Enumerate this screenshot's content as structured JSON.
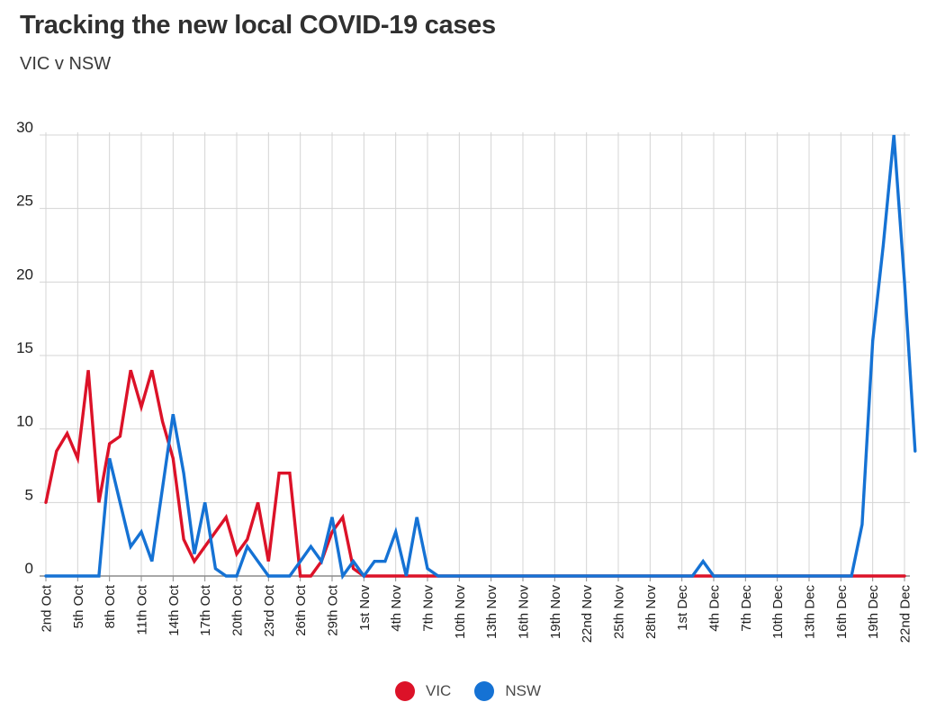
{
  "header": {
    "title": "Tracking the new local COVID-19 cases",
    "subtitle": "VIC v NSW"
  },
  "colors": {
    "vic": "#dc1228",
    "nsw": "#1572d4",
    "grid": "#d4d4d4",
    "axis": "#8c8c8c",
    "axis_label": "#1f1f1f",
    "title_text": "#303030",
    "legend_text": "#4a4a4a",
    "background": "#ffffff"
  },
  "legend": {
    "items": [
      {
        "label": "VIC",
        "color": "#dc1228"
      },
      {
        "label": "NSW",
        "color": "#1572d4"
      }
    ]
  },
  "chart_data": {
    "type": "line",
    "title": "Tracking the new local COVID-19 cases",
    "subtitle": "VIC v NSW",
    "x_frequency": "daily",
    "x_start": "2nd Oct",
    "x_end": "22nd Dec",
    "x_tick_every_days": 3,
    "x_tick_labels": [
      "2nd Oct",
      "5th Oct",
      "8th Oct",
      "11th Oct",
      "14th Oct",
      "17th Oct",
      "20th Oct",
      "23rd Oct",
      "26th Oct",
      "29th Oct",
      "1st Nov",
      "4th Nov",
      "7th Nov",
      "10th Nov",
      "13th Nov",
      "16th Nov",
      "19th Nov",
      "22nd Nov",
      "25th Nov",
      "28th Nov",
      "1st Dec",
      "4th Dec",
      "7th Dec",
      "10th Dec",
      "13th Dec",
      "16th Dec",
      "19th Dec",
      "22nd Dec"
    ],
    "ylim": [
      0,
      30
    ],
    "y_ticks": [
      0,
      5,
      10,
      15,
      20,
      25,
      30
    ],
    "grid": true,
    "legend_position": "bottom-center",
    "series": [
      {
        "name": "VIC",
        "color": "#dc1228",
        "values": [
          5,
          8.5,
          9.7,
          8,
          14,
          5,
          9,
          9.5,
          14,
          11.5,
          14,
          10.5,
          8,
          2.5,
          1,
          2,
          3,
          4,
          1.5,
          2.5,
          5,
          1,
          7,
          7,
          0,
          0,
          1,
          3,
          4,
          0.5,
          0,
          0,
          0,
          0,
          0,
          0,
          0,
          0,
          0,
          0,
          0,
          0,
          0,
          0,
          0,
          0,
          0,
          0,
          0,
          0,
          0,
          0,
          0,
          0,
          0,
          0,
          0,
          0,
          0,
          0,
          0,
          0,
          0,
          0,
          0,
          0,
          0,
          0,
          0,
          0,
          0,
          0,
          0,
          0,
          0,
          0,
          0,
          0,
          0,
          0,
          0,
          0
        ]
      },
      {
        "name": "NSW",
        "color": "#1572d4",
        "values": [
          0,
          0,
          0,
          0,
          0,
          0,
          8,
          5,
          2,
          3,
          1,
          6,
          11,
          7,
          1.5,
          5,
          0.5,
          0,
          0,
          2,
          1,
          0,
          0,
          0,
          1,
          2,
          1,
          4,
          0,
          1,
          0,
          1,
          1,
          3,
          0,
          4,
          0.5,
          0,
          0,
          0,
          0,
          0,
          0,
          0,
          0,
          0,
          0,
          0,
          0,
          0,
          0,
          0,
          0,
          0,
          0,
          0,
          0,
          0,
          0,
          0,
          0,
          0,
          1,
          0,
          0,
          0,
          0,
          0,
          0,
          0,
          0,
          0,
          0,
          0,
          0,
          0,
          0,
          3.5,
          16,
          22.5,
          30,
          20,
          8.5
        ]
      }
    ]
  }
}
